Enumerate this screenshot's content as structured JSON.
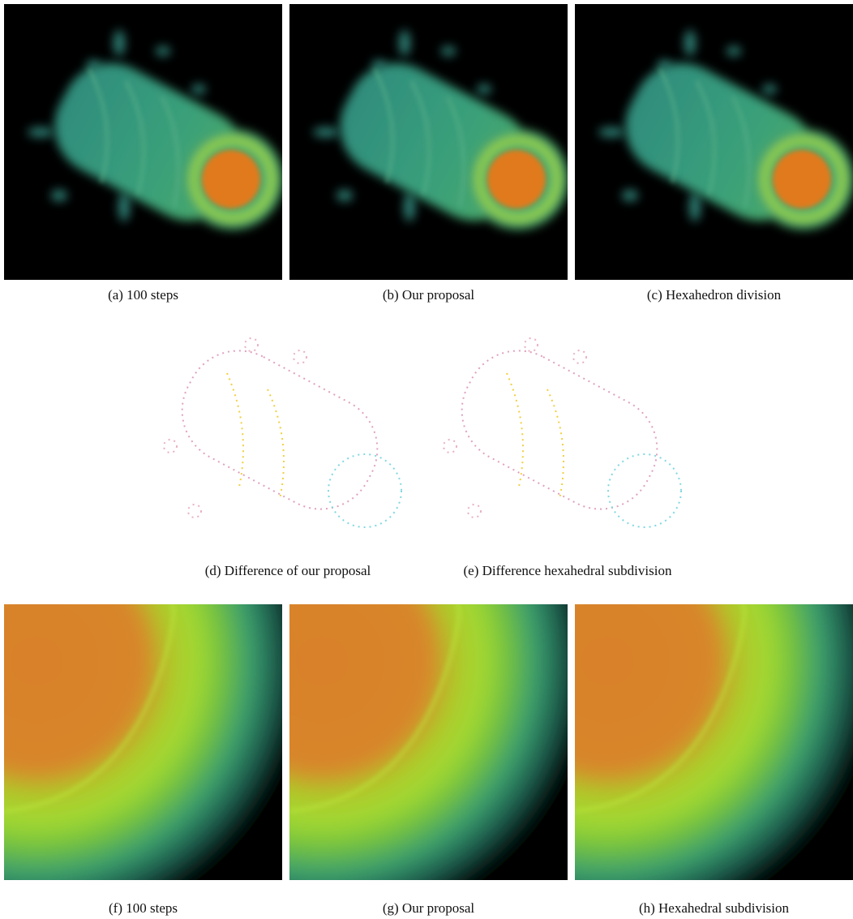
{
  "figure": {
    "subfigures": [
      {
        "caption": "(a) 100 steps"
      },
      {
        "caption": "(b) Our proposal"
      },
      {
        "caption": "(c) Hexahedron division"
      },
      {
        "caption": "(d) Difference of our proposal"
      },
      {
        "caption": "(e) Difference hexahedral subdivision"
      },
      {
        "caption": "(f) 100 steps"
      },
      {
        "caption": "(g) Our proposal"
      },
      {
        "caption": "(h) Hexahedral subdivision"
      }
    ]
  }
}
